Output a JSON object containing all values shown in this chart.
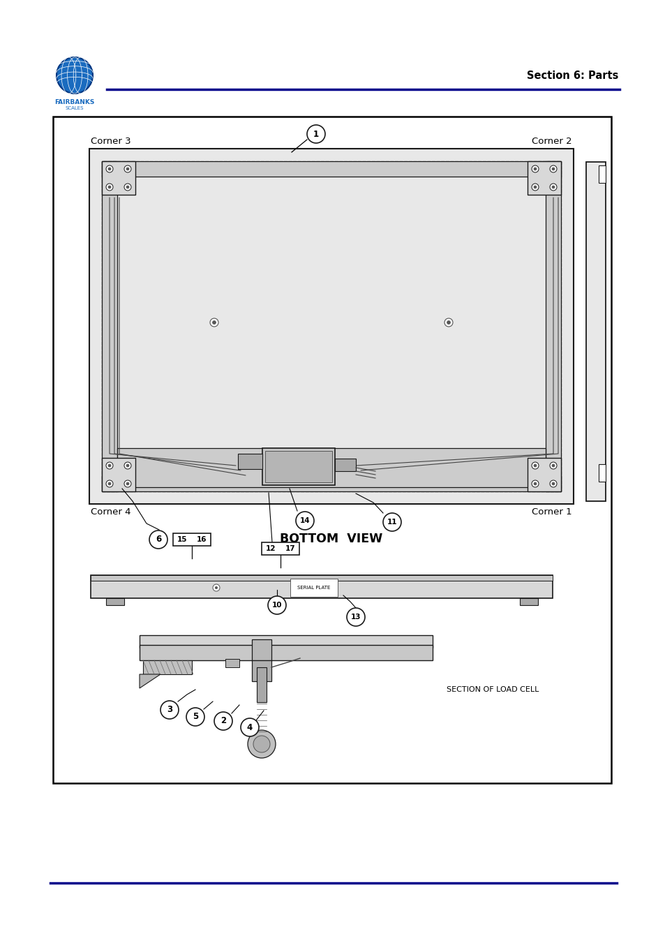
{
  "page_bg": "#ffffff",
  "header_line_color": "#00008B",
  "footer_line_color": "#00008B",
  "header_text": "Section 6: Parts",
  "header_text_color": "#000000",
  "bottom_view_label": "BOTTOM  VIEW",
  "section_label": "SECTION OF LOAD CELL",
  "serial_plate_label": "SERIAL PLATE",
  "corner3": "Corner 3",
  "corner2": "Corner 2",
  "corner4": "Corner 4",
  "corner1": "Corner 1",
  "dark_color": "#1a1a1a",
  "mid_color": "#555555",
  "light_fill": "#e8e8e8",
  "medium_fill": "#cccccc",
  "dark_fill": "#aaaaaa",
  "cable_color": "#444444",
  "globe_color": "#1a6bbf",
  "globe_edge": "#003580"
}
